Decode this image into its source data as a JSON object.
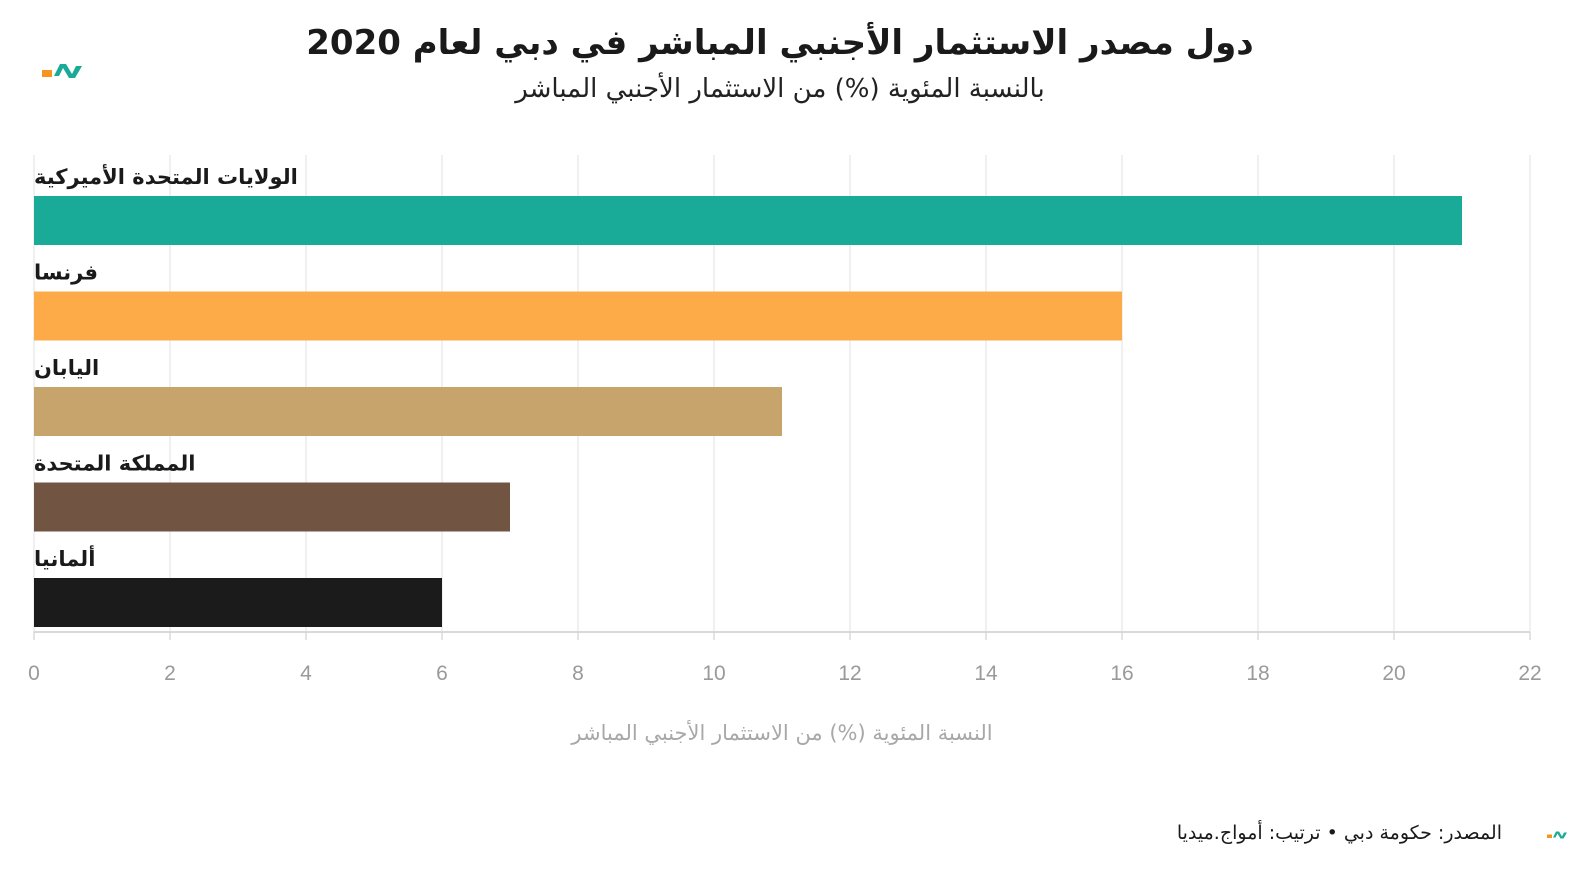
{
  "chart_data": {
    "type": "bar",
    "orientation": "horizontal",
    "title": "دول مصدر الاستثمار الأجنبي المباشر في دبي لعام 2020",
    "subtitle": "بالنسبة المئوية (%) من الاستثمار الأجنبي المباشر",
    "xlabel": "النسبة المئوية (%) من الاستثمار الأجنبي المباشر",
    "categories": [
      "الولايات المتحدة الأميركية",
      "فرنسا",
      "اليابان",
      "المملكة المتحدة",
      "ألمانيا"
    ],
    "values": [
      21,
      16,
      11,
      7,
      6
    ],
    "colors": [
      "#1aab98",
      "#fdab48",
      "#c6a46c",
      "#725442",
      "#1b1b1b"
    ],
    "xlim": [
      0,
      22
    ],
    "xticks": [
      0,
      2,
      4,
      6,
      8,
      10,
      12,
      14,
      16,
      18,
      20,
      22
    ],
    "grid": true,
    "legend": "none"
  },
  "footer": {
    "source": "المصدر: حكومة دبي • ترتيب: أمواج.ميديا"
  },
  "logo": {
    "icon": "amwaj-logo-icon",
    "colors": [
      "#f7941d",
      "#1aab98"
    ]
  }
}
